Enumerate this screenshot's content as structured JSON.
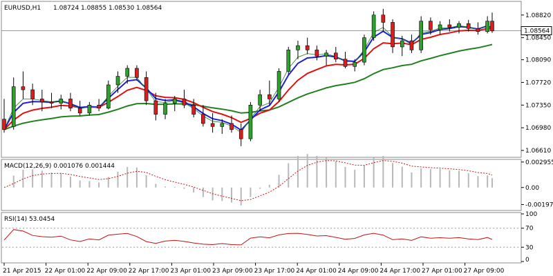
{
  "chart_data": {
    "type": "candlestick",
    "header": {
      "symbol": "EURUSD,H1",
      "open": "1.08724",
      "high": "1.08855",
      "low": "1.08530",
      "close": "1.08564"
    },
    "current_price_label": "1.08564",
    "colors": {
      "bull_candle": "#2ea02e",
      "bear_candle": "#d62020",
      "ma_blue": "#1e1ed8",
      "ma_red": "#e01010",
      "ma_green": "#208020",
      "ma_thin": "#1f7a1f",
      "macd_hist": "#b8b8b8",
      "macd_signal": "#d01010",
      "rsi_line": "#c41010",
      "level_dash": "#999999"
    },
    "price_axis": {
      "ylim": [
        1.0652,
        1.0902
      ],
      "ticks": [
        "1.08820",
        "1.08450",
        "1.08090",
        "1.07720",
        "1.07350",
        "1.06980",
        "1.06610"
      ]
    },
    "x_axis_labels": [
      "21 Apr 2015",
      "22 Apr 01:00",
      "22 Apr 09:00",
      "22 Apr 17:00",
      "23 Apr 01:00",
      "23 Apr 09:00",
      "23 Apr 17:00",
      "24 Apr 01:00",
      "24 Apr 09:00",
      "24 Apr 17:00",
      "27 Apr 01:00",
      "27 Apr 09:00"
    ],
    "macd": {
      "label": "MACD(12,26,9) 0.001076 0.001444",
      "ylim": [
        -0.0025,
        0.0031
      ],
      "ticks": [
        "0.002955",
        "0.00",
        "-0.001976"
      ],
      "histogram_last": 0.001076,
      "signal_last": 0.001444
    },
    "rsi": {
      "label": "RSI(14) 53.0454",
      "ticks": [
        "100",
        "70",
        "30",
        "0"
      ],
      "levels": [
        70,
        30
      ],
      "last": 53.0454
    },
    "price_series": [
      {
        "t": 0,
        "o": 1.0712,
        "h": 1.0745,
        "l": 1.069,
        "c": 1.0695
      },
      {
        "t": 2,
        "o": 1.07,
        "h": 1.078,
        "l": 1.0695,
        "c": 1.0765
      },
      {
        "t": 4,
        "o": 1.0765,
        "h": 1.079,
        "l": 1.0745,
        "c": 1.076
      },
      {
        "t": 6,
        "o": 1.076,
        "h": 1.077,
        "l": 1.0735,
        "c": 1.0745
      },
      {
        "t": 8,
        "o": 1.0745,
        "h": 1.076,
        "l": 1.0725,
        "c": 1.074
      },
      {
        "t": 10,
        "o": 1.074,
        "h": 1.0755,
        "l": 1.073,
        "c": 1.0738
      },
      {
        "t": 12,
        "o": 1.0738,
        "h": 1.0752,
        "l": 1.0728,
        "c": 1.0745
      },
      {
        "t": 14,
        "o": 1.0745,
        "h": 1.0755,
        "l": 1.0725,
        "c": 1.073
      },
      {
        "t": 16,
        "o": 1.073,
        "h": 1.0742,
        "l": 1.0718,
        "c": 1.0722
      },
      {
        "t": 18,
        "o": 1.0722,
        "h": 1.074,
        "l": 1.0718,
        "c": 1.0735
      },
      {
        "t": 20,
        "o": 1.0735,
        "h": 1.0745,
        "l": 1.0725,
        "c": 1.073
      },
      {
        "t": 22,
        "o": 1.073,
        "h": 1.0775,
        "l": 1.0728,
        "c": 1.0768
      },
      {
        "t": 24,
        "o": 1.0768,
        "h": 1.079,
        "l": 1.0755,
        "c": 1.0782
      },
      {
        "t": 26,
        "o": 1.0782,
        "h": 1.08,
        "l": 1.077,
        "c": 1.0795
      },
      {
        "t": 28,
        "o": 1.0795,
        "h": 1.08,
        "l": 1.0775,
        "c": 1.078
      },
      {
        "t": 30,
        "o": 1.078,
        "h": 1.079,
        "l": 1.0735,
        "c": 1.0742
      },
      {
        "t": 32,
        "o": 1.0742,
        "h": 1.0755,
        "l": 1.071,
        "c": 1.072
      },
      {
        "t": 34,
        "o": 1.072,
        "h": 1.0745,
        "l": 1.0712,
        "c": 1.0738
      },
      {
        "t": 36,
        "o": 1.0738,
        "h": 1.075,
        "l": 1.0725,
        "c": 1.0745
      },
      {
        "t": 38,
        "o": 1.0745,
        "h": 1.076,
        "l": 1.073,
        "c": 1.0735
      },
      {
        "t": 40,
        "o": 1.0735,
        "h": 1.0745,
        "l": 1.0715,
        "c": 1.072
      },
      {
        "t": 42,
        "o": 1.072,
        "h": 1.0735,
        "l": 1.07,
        "c": 1.0705
      },
      {
        "t": 44,
        "o": 1.0705,
        "h": 1.0722,
        "l": 1.069,
        "c": 1.07
      },
      {
        "t": 46,
        "o": 1.07,
        "h": 1.0712,
        "l": 1.0688,
        "c": 1.0705
      },
      {
        "t": 48,
        "o": 1.0705,
        "h": 1.0718,
        "l": 1.069,
        "c": 1.0695
      },
      {
        "t": 50,
        "o": 1.0695,
        "h": 1.0705,
        "l": 1.0668,
        "c": 1.068
      },
      {
        "t": 52,
        "o": 1.068,
        "h": 1.074,
        "l": 1.0676,
        "c": 1.0735
      },
      {
        "t": 54,
        "o": 1.0735,
        "h": 1.076,
        "l": 1.0725,
        "c": 1.0752
      },
      {
        "t": 56,
        "o": 1.0752,
        "h": 1.0775,
        "l": 1.0735,
        "c": 1.0745
      },
      {
        "t": 58,
        "o": 1.0745,
        "h": 1.0795,
        "l": 1.074,
        "c": 1.079
      },
      {
        "t": 60,
        "o": 1.079,
        "h": 1.083,
        "l": 1.0785,
        "c": 1.0825
      },
      {
        "t": 62,
        "o": 1.0825,
        "h": 1.084,
        "l": 1.081,
        "c": 1.0832
      },
      {
        "t": 64,
        "o": 1.0832,
        "h": 1.0845,
        "l": 1.0818,
        "c": 1.0825
      },
      {
        "t": 66,
        "o": 1.0825,
        "h": 1.0832,
        "l": 1.0808,
        "c": 1.0815
      },
      {
        "t": 68,
        "o": 1.0815,
        "h": 1.0825,
        "l": 1.08,
        "c": 1.082
      },
      {
        "t": 70,
        "o": 1.082,
        "h": 1.083,
        "l": 1.0805,
        "c": 1.081
      },
      {
        "t": 72,
        "o": 1.081,
        "h": 1.0822,
        "l": 1.0795,
        "c": 1.0798
      },
      {
        "t": 74,
        "o": 1.0798,
        "h": 1.081,
        "l": 1.079,
        "c": 1.0805
      },
      {
        "t": 76,
        "o": 1.0805,
        "h": 1.085,
        "l": 1.08,
        "c": 1.0845
      },
      {
        "t": 78,
        "o": 1.0845,
        "h": 1.0888,
        "l": 1.084,
        "c": 1.0882
      },
      {
        "t": 80,
        "o": 1.0882,
        "h": 1.0892,
        "l": 1.0855,
        "c": 1.087
      },
      {
        "t": 82,
        "o": 1.087,
        "h": 1.0875,
        "l": 1.082,
        "c": 1.083
      },
      {
        "t": 84,
        "o": 1.083,
        "h": 1.0848,
        "l": 1.0815,
        "c": 1.084
      },
      {
        "t": 86,
        "o": 1.084,
        "h": 1.085,
        "l": 1.082,
        "c": 1.0825
      },
      {
        "t": 88,
        "o": 1.0825,
        "h": 1.088,
        "l": 1.082,
        "c": 1.0872
      },
      {
        "t": 90,
        "o": 1.0872,
        "h": 1.0878,
        "l": 1.085,
        "c": 1.0858
      },
      {
        "t": 92,
        "o": 1.0858,
        "h": 1.0872,
        "l": 1.085,
        "c": 1.0866
      },
      {
        "t": 94,
        "o": 1.0866,
        "h": 1.0875,
        "l": 1.0855,
        "c": 1.0862
      },
      {
        "t": 96,
        "o": 1.0862,
        "h": 1.0872,
        "l": 1.0852,
        "c": 1.0868
      },
      {
        "t": 98,
        "o": 1.0868,
        "h": 1.0874,
        "l": 1.0855,
        "c": 1.086
      },
      {
        "t": 100,
        "o": 1.086,
        "h": 1.087,
        "l": 1.085,
        "c": 1.0855
      },
      {
        "t": 102,
        "o": 1.0855,
        "h": 1.088,
        "l": 1.0852,
        "c": 1.0872
      },
      {
        "t": 103,
        "o": 1.0872,
        "h": 1.0886,
        "l": 1.0853,
        "c": 1.0856
      }
    ]
  }
}
